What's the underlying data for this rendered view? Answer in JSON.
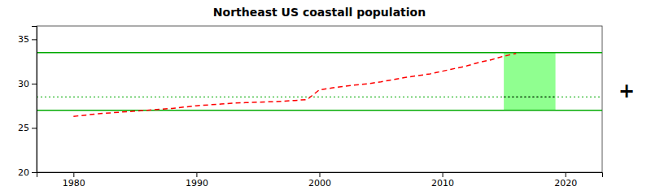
{
  "chart_data": {
    "type": "line",
    "title": "Northeast US coastall population",
    "x": [
      1980,
      1981,
      1982,
      1983,
      1984,
      1985,
      1986,
      1987,
      1988,
      1989,
      1990,
      1991,
      1992,
      1993,
      1994,
      1995,
      1996,
      1997,
      1998,
      1999,
      2000,
      2001,
      2002,
      2003,
      2004,
      2005,
      2006,
      2007,
      2008,
      2009,
      2010,
      2011,
      2012,
      2013,
      2014,
      2015,
      2016
    ],
    "values": [
      26.3,
      26.45,
      26.6,
      26.7,
      26.8,
      26.9,
      27.0,
      27.1,
      27.2,
      27.35,
      27.5,
      27.6,
      27.7,
      27.8,
      27.85,
      27.9,
      27.95,
      28.0,
      28.1,
      28.2,
      29.3,
      29.5,
      29.7,
      29.85,
      30.0,
      30.2,
      30.45,
      30.7,
      30.9,
      31.1,
      31.4,
      31.7,
      32.0,
      32.4,
      32.7,
      33.1,
      33.4
    ],
    "color": "red",
    "line_style": "dashed",
    "xlim": [
      1977,
      2023
    ],
    "ylim": [
      20,
      36.5
    ],
    "xticks": [
      1980,
      1990,
      2000,
      2010,
      2020
    ],
    "yticks": [
      20,
      25,
      30,
      35
    ],
    "grid": false,
    "band": {
      "x": [
        2015.0,
        2019.2
      ],
      "y": [
        27.0,
        33.5
      ],
      "color": "#90ff90"
    },
    "reference_lines": [
      {
        "value": 33.5,
        "color": "#00aa00",
        "line_style": "solid"
      },
      {
        "value": 27.0,
        "color": "#00aa00",
        "line_style": "solid"
      },
      {
        "value": 28.5,
        "color": "#00aa00",
        "line_style": "dotted"
      },
      {
        "value": 28.5,
        "x": [
          2015.0,
          2019.2
        ],
        "color": "black",
        "line_style": "dotted"
      }
    ],
    "annotations": [
      "+"
    ]
  }
}
